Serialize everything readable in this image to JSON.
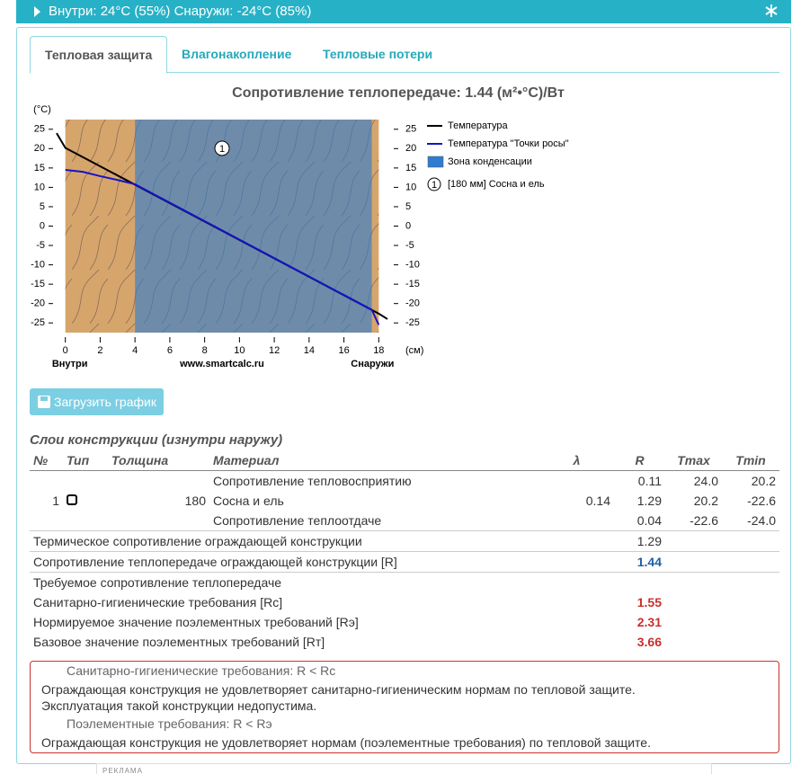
{
  "header": {
    "conditions": "Внутри: 24°C (55%) Снаружи: -24°C (85%)"
  },
  "tabs": [
    "Тепловая защита",
    "Влагонакопление",
    "Тепловые потери"
  ],
  "chart_data": {
    "type": "line",
    "title": "Сопротивление теплопередаче: 1.44 (м²•°C)/Вт",
    "y_unit": "(°C)",
    "x_unit": "(см)",
    "x_labels": [
      "Внутри",
      "www.smartcalc.ru",
      "Снаружи"
    ],
    "xlim": [
      -0.5,
      18.5
    ],
    "xticks": [
      0,
      2,
      4,
      6,
      8,
      10,
      12,
      14,
      16,
      18
    ],
    "ylim": [
      -27.5,
      27.5
    ],
    "yticks": [
      25,
      20,
      15,
      10,
      5,
      0,
      -5,
      -10,
      -15,
      -20,
      -25
    ],
    "y2lim": [
      -27.5,
      27.5
    ],
    "y2ticks": [
      25,
      20,
      15,
      10,
      5,
      0,
      -5,
      -10,
      -15,
      -20,
      -25
    ],
    "layers": [
      {
        "label": "1",
        "name": "[180 мм] Сосна и ель",
        "range": [
          0,
          18
        ],
        "color": "#d6a56c"
      }
    ],
    "regions": [
      {
        "name": "Зона конденсации",
        "range": [
          4,
          17.6
        ],
        "color": "#2f7dd1"
      }
    ],
    "series": [
      {
        "name": "Температура",
        "color": "#000000",
        "x": [
          -0.5,
          0,
          18,
          18.5
        ],
        "values": [
          24,
          20.2,
          -22.6,
          -24
        ]
      },
      {
        "name": "Температура \"Точки росы\"",
        "color": "#1414c8",
        "x": [
          0,
          1,
          2,
          3,
          4,
          17.6,
          18
        ],
        "values": [
          14.5,
          14.0,
          12.9,
          11.9,
          10.8,
          -21.6,
          -25.5
        ]
      }
    ]
  },
  "download_button": "Загрузить график",
  "layers_table": {
    "title": "Слои конструкции (изнутри наружу)",
    "columns": [
      "№",
      "Тип",
      "Толщина",
      "Материал",
      "λ",
      "R",
      "Tmax",
      "Tmin"
    ],
    "rows": [
      [
        null,
        null,
        null,
        "Сопротивление тепловосприятию",
        null,
        "0.11",
        "24.0",
        "20.2"
      ],
      [
        "1",
        null,
        "180",
        "Сосна и ель",
        "0.14",
        "1.29",
        "20.2",
        "-22.6"
      ],
      [
        null,
        null,
        null,
        "Сопротивление теплоотдаче",
        null,
        "0.04",
        "-22.6",
        "-24.0"
      ]
    ],
    "summary": [
      {
        "label": "Термическое сопротивление ограждающей конструкции",
        "value": "1.29"
      },
      {
        "label": "Сопротивление теплопередаче ограждающей конструкции [R]",
        "value": "1.44"
      }
    ],
    "required_title": "Требуемое сопротивление теплопередаче",
    "required": [
      {
        "label": "Санитарно-гигиенические требования [Rс]",
        "value": "1.55"
      },
      {
        "label": "Нормируемое значение поэлементных требований [Rэ]",
        "value": "2.31"
      },
      {
        "label": "Базовое значение поэлементных требований [Rт]",
        "value": "3.66"
      }
    ]
  },
  "alert": [
    {
      "heading": "Санитарно-гигиенические требования: R < Rс",
      "lines": [
        "Ограждающая конструкция не удовлетворяет санитарно-гигиеническим нормам по тепловой защите.",
        "Эксплуатация такой конструкции недопустима."
      ]
    },
    {
      "heading": "Поэлементные требования: R < Rэ",
      "lines": [
        "Ограждающая конструкция не удовлетворяет нормам (поэлементные требования) по тепловой защите."
      ]
    }
  ],
  "ad_label": "РЕКЛАМА"
}
